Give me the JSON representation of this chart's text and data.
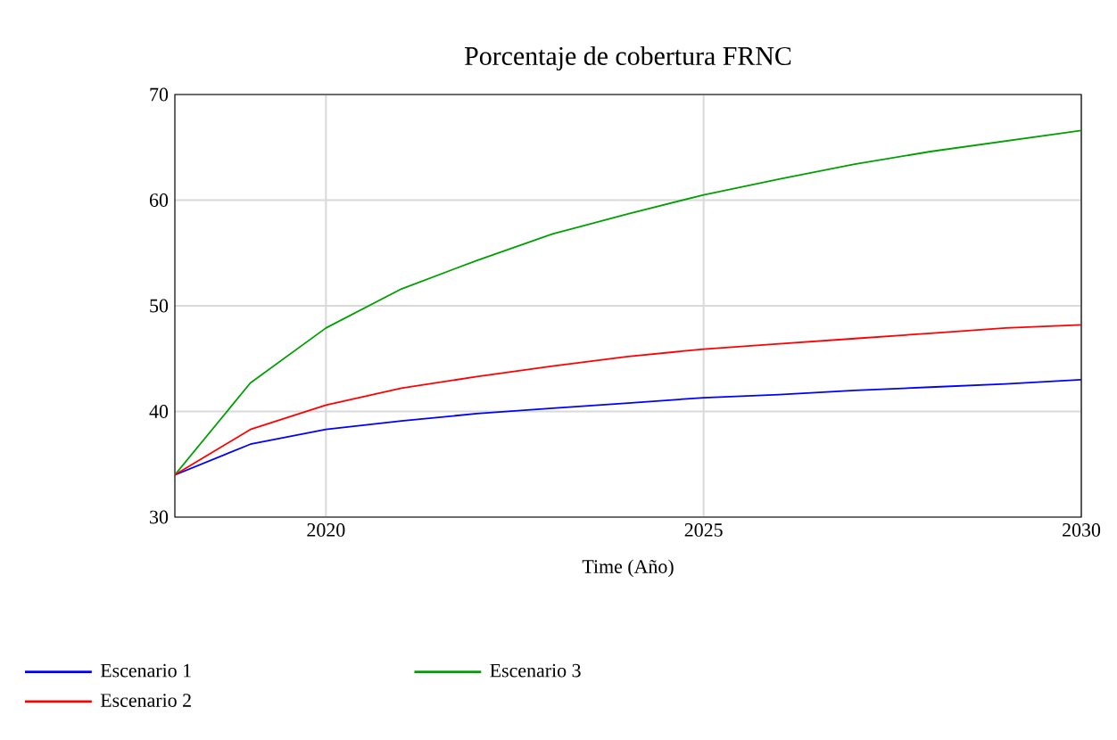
{
  "chart_data": {
    "type": "line",
    "title": "Porcentaje de cobertura FRNC",
    "xlabel": "Time (Año)",
    "x": [
      2018,
      2019,
      2020,
      2021,
      2022,
      2023,
      2024,
      2025,
      2026,
      2027,
      2028,
      2029,
      2030
    ],
    "series": [
      {
        "name": "Escenario 1",
        "color": "#0000ff",
        "values": [
          34,
          36.9,
          38.3,
          39.1,
          39.8,
          40.3,
          40.8,
          41.3,
          41.6,
          42.0,
          42.3,
          42.6,
          43.0
        ]
      },
      {
        "name": "Escenario 2",
        "color": "#ff0000",
        "values": [
          34,
          38.3,
          40.6,
          42.2,
          43.3,
          44.3,
          45.2,
          45.9,
          46.4,
          46.9,
          47.4,
          47.9,
          48.2
        ]
      },
      {
        "name": "Escenario 3",
        "color": "#00a000",
        "values": [
          34,
          42.7,
          47.9,
          51.6,
          54.3,
          56.8,
          58.7,
          60.5,
          62.0,
          63.4,
          64.6,
          65.6,
          66.6
        ]
      }
    ],
    "xlim": [
      2018,
      2030
    ],
    "ylim": [
      30,
      70
    ],
    "xticks": [
      2020,
      2025,
      2030
    ],
    "yticks": [
      30,
      40,
      50,
      60,
      70
    ],
    "grid": true,
    "legend": "bottom left",
    "marker": "none",
    "line_style": "solid"
  }
}
